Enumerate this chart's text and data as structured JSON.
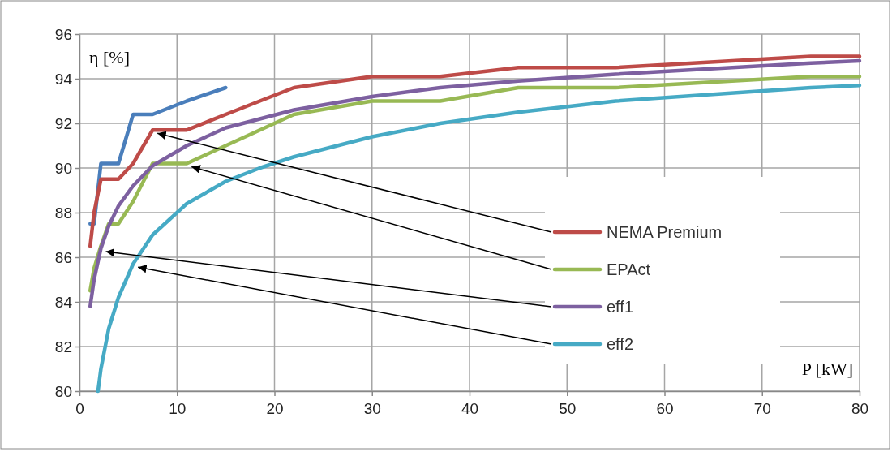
{
  "chart_data": {
    "type": "line",
    "xlabel": "P [kW]",
    "ylabel": "η [%]",
    "xlim": [
      0,
      80
    ],
    "ylim": [
      80,
      96
    ],
    "xticks": [
      0,
      10,
      20,
      30,
      40,
      50,
      60,
      70,
      80
    ],
    "yticks": [
      80,
      82,
      84,
      86,
      88,
      90,
      92,
      94,
      96
    ],
    "grid": true,
    "legend": "right",
    "marker": "none",
    "line_style": "solid",
    "series": [
      {
        "color": "#4a7ebb",
        "x": [
          1.1,
          1.5,
          2.2,
          3,
          4,
          5.5,
          7.5,
          11,
          15
        ],
        "values": [
          87.5,
          87.5,
          90.2,
          90.2,
          90.2,
          92.4,
          92.4,
          93.0,
          93.6
        ]
      },
      {
        "name": "NEMA Premium",
        "color": "#be4b48",
        "x": [
          1.1,
          1.5,
          2.2,
          3,
          4,
          5.5,
          7.5,
          11,
          15,
          18.5,
          22,
          30,
          37,
          45,
          55,
          75,
          80
        ],
        "values": [
          86.5,
          88.0,
          89.5,
          89.5,
          89.5,
          90.2,
          91.7,
          91.7,
          92.4,
          93.0,
          93.6,
          94.1,
          94.1,
          94.5,
          94.5,
          95.0,
          95.0
        ]
      },
      {
        "name": "EPAct",
        "color": "#98b954",
        "x": [
          1.1,
          1.5,
          2.2,
          3,
          4,
          5.5,
          7.5,
          11,
          15,
          18.5,
          22,
          30,
          37,
          45,
          55,
          75,
          80
        ],
        "values": [
          84.5,
          85.5,
          86.5,
          87.5,
          87.5,
          88.5,
          90.2,
          90.2,
          91.0,
          91.7,
          92.4,
          93.0,
          93.0,
          93.6,
          93.6,
          94.1,
          94.1
        ]
      },
      {
        "name": "eff1",
        "color": "#7d60a0",
        "x": [
          1.1,
          1.5,
          2.2,
          3,
          4,
          5.5,
          7.5,
          11,
          15,
          18.5,
          22,
          30,
          37,
          45,
          55,
          75,
          80
        ],
        "values": [
          83.8,
          85.0,
          86.4,
          87.4,
          88.3,
          89.2,
          90.1,
          91.0,
          91.8,
          92.2,
          92.6,
          93.2,
          93.6,
          93.9,
          94.2,
          94.7,
          94.8
        ]
      },
      {
        "name": "eff2",
        "color": "#46aac5",
        "x": [
          1.9,
          2.2,
          3,
          4,
          5.5,
          7.5,
          11,
          15,
          18.5,
          22,
          30,
          37,
          45,
          55,
          75,
          80
        ],
        "values": [
          80.0,
          81.0,
          82.8,
          84.2,
          85.7,
          87.0,
          88.4,
          89.4,
          90.0,
          90.5,
          91.4,
          92.0,
          92.5,
          93.0,
          93.6,
          93.7
        ]
      }
    ]
  }
}
